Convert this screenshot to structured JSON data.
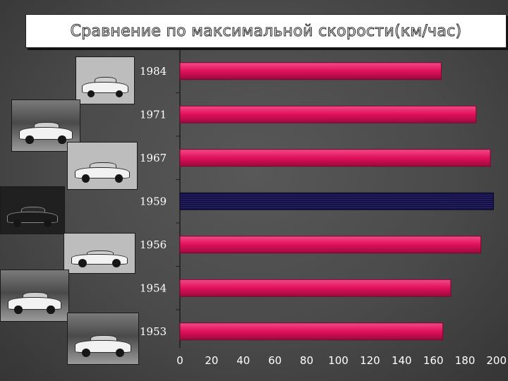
{
  "chart_data": {
    "type": "bar",
    "orientation": "horizontal",
    "title": "Сравнение по максимальной скорости(км/час)",
    "categories": [
      "1984",
      "1971",
      "1967",
      "1959",
      "1956",
      "1954",
      "1953"
    ],
    "values": [
      165,
      187,
      196,
      198,
      190,
      171,
      166
    ],
    "highlight_category": "1959",
    "xlim": [
      0,
      200
    ],
    "xticks": [
      "0",
      "20",
      "40",
      "60",
      "80",
      "100",
      "120",
      "140",
      "160",
      "180",
      "200"
    ],
    "grid": false,
    "legend": "none",
    "colors": {
      "bar": "#e0105a",
      "bar_highlight": "#1a1248",
      "axis": "#1e1e1e"
    }
  },
  "photos": [
    {
      "category": "1984",
      "icon": "white-car-photo",
      "tone": "grey"
    },
    {
      "category": "1971",
      "icon": "white-car-photo",
      "tone": "trees"
    },
    {
      "category": "1967",
      "icon": "white-car-photo",
      "tone": "grey"
    },
    {
      "category": "1959",
      "icon": "black-car-photo",
      "tone": "dark"
    },
    {
      "category": "1956",
      "icon": "white-car-photo",
      "tone": "grey"
    },
    {
      "category": "1954",
      "icon": "white-car-photo",
      "tone": "trees"
    },
    {
      "category": "1953",
      "icon": "dark-car-photo",
      "tone": "trees"
    }
  ]
}
